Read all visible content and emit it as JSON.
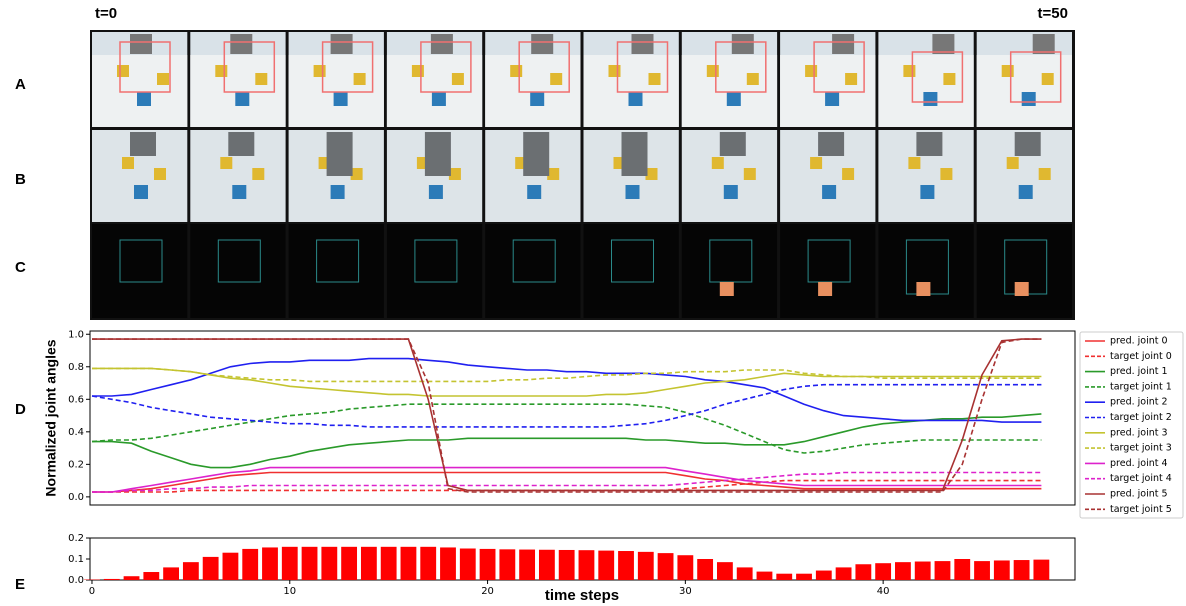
{
  "panel_labels": [
    "A",
    "B",
    "C",
    "D",
    "E"
  ],
  "time_labels": [
    "t=0",
    "t=50"
  ],
  "chart_data": [
    {
      "type": "line",
      "ylabel": "Normalized joint angles",
      "x": [
        0,
        1,
        2,
        3,
        4,
        5,
        6,
        7,
        8,
        9,
        10,
        11,
        12,
        13,
        14,
        15,
        16,
        17,
        18,
        19,
        20,
        21,
        22,
        23,
        24,
        25,
        26,
        27,
        28,
        29,
        30,
        31,
        32,
        33,
        34,
        35,
        36,
        37,
        38,
        39,
        40,
        41,
        42,
        43,
        44,
        45,
        46,
        47,
        48
      ],
      "xlim": [
        -0.1,
        49.7
      ],
      "ylim": [
        -0.05,
        1.02
      ],
      "yticks": [
        {
          "value": 0,
          "label": "0.0"
        },
        0.2,
        0.4,
        0.6,
        0.8,
        {
          "value": 1,
          "label": "1.0"
        }
      ],
      "legend": "outside-right",
      "series": [
        {
          "name": "pred. joint 0",
          "color": "#f03030",
          "linestyle": "solid",
          "values": [
            0.03,
            0.03,
            0.04,
            0.05,
            0.07,
            0.09,
            0.11,
            0.13,
            0.14,
            0.15,
            0.15,
            0.15,
            0.15,
            0.15,
            0.15,
            0.15,
            0.15,
            0.15,
            0.15,
            0.15,
            0.15,
            0.15,
            0.15,
            0.15,
            0.15,
            0.15,
            0.15,
            0.15,
            0.15,
            0.15,
            0.13,
            0.11,
            0.1,
            0.08,
            0.07,
            0.06,
            0.05,
            0.05,
            0.05,
            0.05,
            0.05,
            0.05,
            0.05,
            0.05,
            0.05,
            0.05,
            0.05,
            0.05,
            0.05
          ]
        },
        {
          "name": "target joint 0",
          "color": "#f03030",
          "linestyle": "dashed",
          "values": [
            0.03,
            0.03,
            0.03,
            0.03,
            0.03,
            0.04,
            0.04,
            0.04,
            0.04,
            0.04,
            0.04,
            0.04,
            0.04,
            0.04,
            0.04,
            0.04,
            0.04,
            0.04,
            0.04,
            0.04,
            0.04,
            0.04,
            0.04,
            0.04,
            0.04,
            0.04,
            0.04,
            0.04,
            0.04,
            0.04,
            0.05,
            0.06,
            0.07,
            0.08,
            0.09,
            0.1,
            0.1,
            0.1,
            0.1,
            0.1,
            0.1,
            0.1,
            0.1,
            0.1,
            0.1,
            0.1,
            0.1,
            0.1,
            0.1
          ]
        },
        {
          "name": "pred. joint 1",
          "color": "#2a9a2a",
          "linestyle": "solid",
          "values": [
            0.34,
            0.34,
            0.33,
            0.28,
            0.24,
            0.2,
            0.18,
            0.18,
            0.2,
            0.23,
            0.25,
            0.28,
            0.3,
            0.32,
            0.33,
            0.34,
            0.35,
            0.35,
            0.35,
            0.36,
            0.36,
            0.36,
            0.36,
            0.36,
            0.36,
            0.36,
            0.36,
            0.36,
            0.35,
            0.35,
            0.34,
            0.33,
            0.33,
            0.32,
            0.32,
            0.32,
            0.34,
            0.37,
            0.4,
            0.43,
            0.45,
            0.46,
            0.47,
            0.48,
            0.48,
            0.49,
            0.49,
            0.5,
            0.51
          ]
        },
        {
          "name": "target joint 1",
          "color": "#2a9a2a",
          "linestyle": "dashed",
          "values": [
            0.34,
            0.35,
            0.35,
            0.36,
            0.38,
            0.4,
            0.42,
            0.44,
            0.46,
            0.48,
            0.5,
            0.51,
            0.52,
            0.54,
            0.55,
            0.56,
            0.57,
            0.57,
            0.57,
            0.57,
            0.57,
            0.57,
            0.57,
            0.57,
            0.57,
            0.57,
            0.57,
            0.57,
            0.56,
            0.55,
            0.52,
            0.48,
            0.44,
            0.39,
            0.34,
            0.29,
            0.27,
            0.28,
            0.3,
            0.32,
            0.33,
            0.34,
            0.35,
            0.35,
            0.35,
            0.35,
            0.35,
            0.35,
            0.35
          ]
        },
        {
          "name": "pred. joint 2",
          "color": "#2020f0",
          "linestyle": "solid",
          "values": [
            0.62,
            0.62,
            0.63,
            0.66,
            0.69,
            0.72,
            0.76,
            0.8,
            0.82,
            0.83,
            0.83,
            0.84,
            0.84,
            0.84,
            0.85,
            0.85,
            0.85,
            0.84,
            0.83,
            0.81,
            0.8,
            0.79,
            0.78,
            0.78,
            0.77,
            0.77,
            0.76,
            0.76,
            0.76,
            0.75,
            0.74,
            0.72,
            0.71,
            0.69,
            0.67,
            0.62,
            0.57,
            0.53,
            0.5,
            0.49,
            0.48,
            0.47,
            0.47,
            0.47,
            0.47,
            0.47,
            0.46,
            0.46,
            0.46
          ]
        },
        {
          "name": "target joint 2",
          "color": "#2020f0",
          "linestyle": "dashed",
          "values": [
            0.62,
            0.6,
            0.58,
            0.55,
            0.53,
            0.51,
            0.49,
            0.48,
            0.47,
            0.46,
            0.45,
            0.45,
            0.44,
            0.44,
            0.43,
            0.43,
            0.43,
            0.43,
            0.43,
            0.43,
            0.43,
            0.43,
            0.43,
            0.43,
            0.43,
            0.43,
            0.43,
            0.44,
            0.45,
            0.47,
            0.5,
            0.53,
            0.57,
            0.6,
            0.63,
            0.66,
            0.68,
            0.69,
            0.69,
            0.69,
            0.69,
            0.69,
            0.69,
            0.69,
            0.69,
            0.69,
            0.69,
            0.69,
            0.69
          ]
        },
        {
          "name": "pred. joint 3",
          "color": "#c4c430",
          "linestyle": "solid",
          "values": [
            0.79,
            0.79,
            0.79,
            0.79,
            0.78,
            0.77,
            0.75,
            0.73,
            0.72,
            0.7,
            0.68,
            0.67,
            0.66,
            0.65,
            0.64,
            0.63,
            0.63,
            0.62,
            0.62,
            0.62,
            0.62,
            0.62,
            0.62,
            0.62,
            0.62,
            0.62,
            0.63,
            0.63,
            0.64,
            0.66,
            0.68,
            0.7,
            0.71,
            0.72,
            0.74,
            0.76,
            0.75,
            0.74,
            0.74,
            0.74,
            0.74,
            0.74,
            0.74,
            0.74,
            0.74,
            0.74,
            0.74,
            0.74,
            0.74
          ]
        },
        {
          "name": "target joint 3",
          "color": "#c4c430",
          "linestyle": "dashed",
          "values": [
            0.79,
            0.79,
            0.79,
            0.79,
            0.78,
            0.77,
            0.75,
            0.74,
            0.73,
            0.72,
            0.72,
            0.71,
            0.71,
            0.71,
            0.71,
            0.71,
            0.71,
            0.71,
            0.71,
            0.71,
            0.71,
            0.72,
            0.72,
            0.73,
            0.73,
            0.74,
            0.75,
            0.75,
            0.76,
            0.76,
            0.77,
            0.77,
            0.77,
            0.78,
            0.78,
            0.78,
            0.76,
            0.75,
            0.74,
            0.74,
            0.73,
            0.73,
            0.73,
            0.73,
            0.73,
            0.73,
            0.73,
            0.73,
            0.73
          ]
        },
        {
          "name": "pred. joint 4",
          "color": "#dd22cc",
          "linestyle": "solid",
          "values": [
            0.03,
            0.03,
            0.05,
            0.07,
            0.09,
            0.11,
            0.13,
            0.15,
            0.16,
            0.18,
            0.18,
            0.18,
            0.18,
            0.18,
            0.18,
            0.18,
            0.18,
            0.18,
            0.18,
            0.18,
            0.18,
            0.18,
            0.18,
            0.18,
            0.18,
            0.18,
            0.18,
            0.18,
            0.18,
            0.18,
            0.16,
            0.14,
            0.12,
            0.1,
            0.09,
            0.08,
            0.07,
            0.07,
            0.07,
            0.07,
            0.07,
            0.07,
            0.07,
            0.07,
            0.07,
            0.07,
            0.07,
            0.07,
            0.07
          ]
        },
        {
          "name": "target joint 4",
          "color": "#dd22cc",
          "linestyle": "dashed",
          "values": [
            0.03,
            0.03,
            0.04,
            0.04,
            0.05,
            0.05,
            0.06,
            0.06,
            0.07,
            0.07,
            0.07,
            0.07,
            0.07,
            0.07,
            0.07,
            0.07,
            0.07,
            0.07,
            0.07,
            0.07,
            0.07,
            0.07,
            0.07,
            0.07,
            0.07,
            0.07,
            0.07,
            0.07,
            0.07,
            0.07,
            0.08,
            0.09,
            0.1,
            0.11,
            0.12,
            0.13,
            0.14,
            0.14,
            0.15,
            0.15,
            0.15,
            0.15,
            0.15,
            0.15,
            0.15,
            0.15,
            0.15,
            0.15,
            0.15
          ]
        },
        {
          "name": "pred. joint 5",
          "color": "#a83232",
          "linestyle": "solid",
          "values": [
            0.97,
            0.97,
            0.97,
            0.97,
            0.97,
            0.97,
            0.97,
            0.97,
            0.97,
            0.97,
            0.97,
            0.97,
            0.97,
            0.97,
            0.97,
            0.97,
            0.97,
            0.6,
            0.07,
            0.04,
            0.04,
            0.04,
            0.04,
            0.04,
            0.04,
            0.04,
            0.04,
            0.04,
            0.04,
            0.04,
            0.04,
            0.04,
            0.04,
            0.04,
            0.04,
            0.04,
            0.04,
            0.04,
            0.04,
            0.04,
            0.04,
            0.04,
            0.04,
            0.04,
            0.35,
            0.75,
            0.96,
            0.97,
            0.97
          ]
        },
        {
          "name": "target joint 5",
          "color": "#a83232",
          "linestyle": "dashed",
          "values": [
            0.97,
            0.97,
            0.97,
            0.97,
            0.97,
            0.97,
            0.97,
            0.97,
            0.97,
            0.97,
            0.97,
            0.97,
            0.97,
            0.97,
            0.97,
            0.97,
            0.97,
            0.7,
            0.05,
            0.03,
            0.03,
            0.03,
            0.03,
            0.03,
            0.03,
            0.03,
            0.03,
            0.03,
            0.03,
            0.03,
            0.03,
            0.03,
            0.03,
            0.03,
            0.03,
            0.03,
            0.03,
            0.03,
            0.03,
            0.03,
            0.03,
            0.03,
            0.03,
            0.03,
            0.2,
            0.6,
            0.95,
            0.97,
            0.97
          ]
        }
      ]
    },
    {
      "type": "bar",
      "xlabel": "time steps",
      "color": "#ff0000",
      "x": [
        0,
        1,
        2,
        3,
        4,
        5,
        6,
        7,
        8,
        9,
        10,
        11,
        12,
        13,
        14,
        15,
        16,
        17,
        18,
        19,
        20,
        21,
        22,
        23,
        24,
        25,
        26,
        27,
        28,
        29,
        30,
        31,
        32,
        33,
        34,
        35,
        36,
        37,
        38,
        39,
        40,
        41,
        42,
        43,
        44,
        45,
        46,
        47,
        48
      ],
      "values": [
        0.002,
        0.005,
        0.018,
        0.038,
        0.06,
        0.085,
        0.11,
        0.13,
        0.148,
        0.155,
        0.158,
        0.158,
        0.158,
        0.158,
        0.158,
        0.158,
        0.158,
        0.158,
        0.155,
        0.15,
        0.148,
        0.146,
        0.145,
        0.144,
        0.143,
        0.142,
        0.14,
        0.138,
        0.134,
        0.128,
        0.118,
        0.1,
        0.085,
        0.06,
        0.04,
        0.03,
        0.03,
        0.045,
        0.06,
        0.075,
        0.08,
        0.085,
        0.088,
        0.09,
        0.1,
        0.09,
        0.093,
        0.095,
        0.097
      ],
      "xlim": [
        -0.1,
        49.7
      ],
      "ylim": [
        0,
        0.2
      ],
      "xticks": [
        0,
        10,
        20,
        30,
        40
      ],
      "yticks": [
        {
          "value": 0,
          "label": "0.0"
        },
        0.1,
        0.2
      ]
    }
  ]
}
